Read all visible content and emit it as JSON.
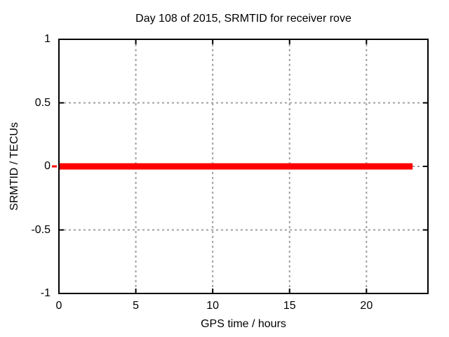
{
  "chart_data": {
    "type": "line",
    "title": "Day 108 of 2015, SRMTID for receiver rove",
    "xlabel": "GPS time / hours",
    "ylabel": "SRMTID / TECUs",
    "xlim": [
      0,
      24
    ],
    "ylim": [
      -1,
      1
    ],
    "xticks": [
      0,
      5,
      10,
      15,
      20
    ],
    "xtick_labels": [
      "0",
      "5",
      "10",
      "15",
      "20"
    ],
    "yticks": [
      -1,
      -0.5,
      0,
      0.5,
      1
    ],
    "ytick_labels": [
      "-1",
      "-0.5",
      "0",
      "0.5",
      "1"
    ],
    "grid": true,
    "grid_style": "dotted",
    "legend": "none",
    "series": [
      {
        "name": "SRMTID",
        "x": [
          0,
          23
        ],
        "y": [
          0,
          0
        ],
        "color": "#ff0000",
        "linewidth": 9
      }
    ],
    "colors": {
      "axis": "#000000",
      "text": "#000000",
      "grid": "#a0a0a0",
      "background": "#ffffff"
    }
  }
}
